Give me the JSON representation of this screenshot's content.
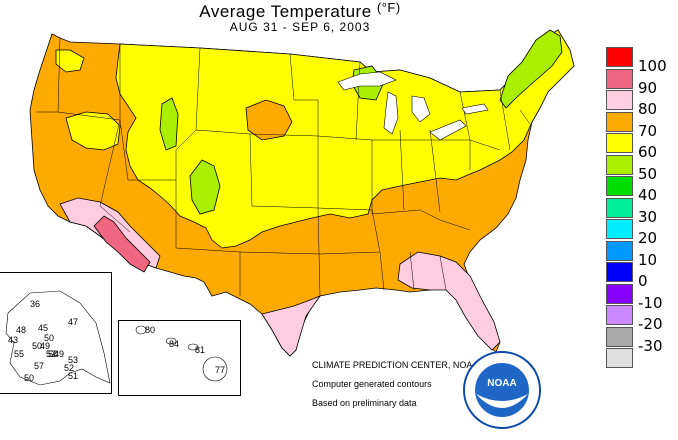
{
  "title": "Average Temperature",
  "title_unit": "(°F)",
  "subtitle": "AUG 31 - SEP  6, 2003",
  "legend": [
    {
      "label": "100",
      "color": "#ff0000"
    },
    {
      "label": "90",
      "color": "#ee6680"
    },
    {
      "label": "80",
      "color": "#ffcce0"
    },
    {
      "label": "70",
      "color": "#ffaa00"
    },
    {
      "label": "60",
      "color": "#ffff00"
    },
    {
      "label": "50",
      "color": "#aaee00"
    },
    {
      "label": "40",
      "color": "#00dd00"
    },
    {
      "label": "30",
      "color": "#00ee99"
    },
    {
      "label": "20",
      "color": "#00eeff"
    },
    {
      "label": "10",
      "color": "#0099ff"
    },
    {
      "label": "0",
      "color": "#0000ff"
    },
    {
      "label": "-10",
      "color": "#8800ff"
    },
    {
      "label": "-20",
      "color": "#cc88ff"
    },
    {
      "label": "-30",
      "color": "#aaaaaa"
    },
    {
      "label": "",
      "color": "#e0e0e0"
    }
  ],
  "credits": {
    "line1": "CLIMATE PREDICTION CENTER, NOAA",
    "line2": "Computer generated contours",
    "line3": "Based on preliminary data"
  },
  "logo_text": "NOAA",
  "alaska_values": [
    "36",
    "47",
    "48",
    "45",
    "50",
    "43",
    "50",
    "49",
    "50",
    "55",
    "52",
    "49",
    "53",
    "57",
    "52",
    "51",
    "50"
  ],
  "hawaii_values": [
    "80",
    "84",
    "81",
    "77"
  ]
}
